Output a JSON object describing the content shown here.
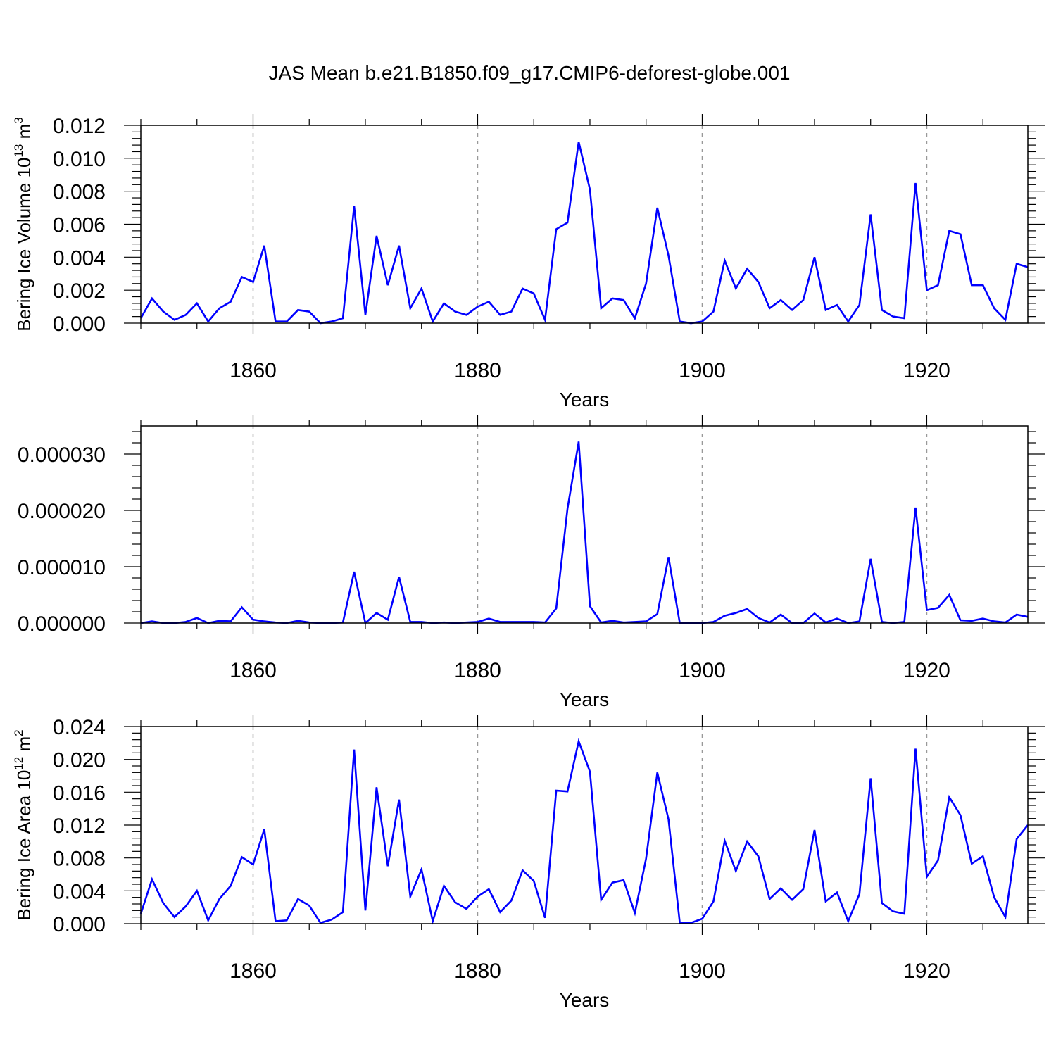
{
  "figure_title": "JAS Mean b.e21.B1850.f09_g17.CMIP6-deforest-globe.001",
  "colors": {
    "line": "#0000ff",
    "axis": "#000000",
    "grid": "#999999"
  },
  "chart_data": [
    {
      "type": "line",
      "title": "JAS Mean b.e21.B1850.f09_g17.CMIP6-deforest-globe.001",
      "xlabel": "Years",
      "ylabel": {
        "text": "Bering Ice Volume 10",
        "exponent": "13",
        "unit": " m",
        "unit_exponent": "3"
      },
      "xlim": [
        1850,
        1929
      ],
      "ylim": [
        0,
        0.012
      ],
      "x_ticks": [
        1860,
        1880,
        1900,
        1920
      ],
      "y_ticks": [
        "0.000",
        "0.002",
        "0.004",
        "0.006",
        "0.008",
        "0.010",
        "0.012"
      ],
      "grid": "vertical dashed at major x ticks",
      "legend": "none",
      "x_start": 1850,
      "series": [
        {
          "values": [
            0.0003,
            0.0015,
            0.0007,
            0.0002,
            0.0005,
            0.0012,
            0.0001,
            0.0009,
            0.0013,
            0.0028,
            0.0025,
            0.0047,
            0.0001,
            0.0001,
            0.0008,
            0.0007,
            0.0,
            0.0001,
            0.0003,
            0.0071,
            0.0005,
            0.0053,
            0.0023,
            0.0047,
            0.0009,
            0.0021,
            0.0001,
            0.0012,
            0.0007,
            0.0005,
            0.001,
            0.0013,
            0.0005,
            0.0007,
            0.0021,
            0.0018,
            0.0002,
            0.0057,
            0.0061,
            0.011,
            0.0081,
            0.0009,
            0.0015,
            0.0014,
            0.0003,
            0.0024,
            0.007,
            0.0041,
            0.0001,
            0.0,
            0.0001,
            0.0007,
            0.0038,
            0.0021,
            0.0033,
            0.0025,
            0.0009,
            0.0014,
            0.0008,
            0.0014,
            0.004,
            0.0008,
            0.0011,
            0.0001,
            0.0011,
            0.0066,
            0.0008,
            0.0004,
            0.0003,
            0.0085,
            0.002,
            0.0023,
            0.0056,
            0.0054,
            0.0023,
            0.0023,
            0.0009,
            0.0002,
            0.0036,
            0.0034
          ]
        }
      ]
    },
    {
      "type": "line",
      "title": "",
      "xlabel": "Years",
      "ylabel": null,
      "xlim": [
        1850,
        1929
      ],
      "ylim": [
        0,
        3.5e-05
      ],
      "x_ticks": [
        1860,
        1880,
        1900,
        1920
      ],
      "y_ticks": [
        "0.000000",
        "0.000010",
        "0.000020",
        "0.000030"
      ],
      "grid": "vertical dashed at major x ticks",
      "legend": "none",
      "x_start": 1850,
      "series": [
        {
          "values": [
            0.0,
            3e-07,
            0.0,
            0.0,
            2e-07,
            9e-07,
            0.0,
            4e-07,
            3e-07,
            2.8e-06,
            6e-07,
            3e-07,
            1e-07,
            0.0,
            4e-07,
            1e-07,
            0.0,
            0.0,
            1e-07,
            9.1e-06,
            0.0,
            1.8e-06,
            6e-07,
            8.2e-06,
            2e-07,
            2e-07,
            0.0,
            1e-07,
            0.0,
            1e-07,
            2e-07,
            8e-07,
            2e-07,
            2e-07,
            2e-07,
            2e-07,
            1e-07,
            2.6e-06,
            2.03e-05,
            3.22e-05,
            3e-06,
            1e-07,
            4e-07,
            1e-07,
            2e-07,
            3e-07,
            1.6e-06,
            1.17e-05,
            0.0,
            0.0,
            0.0,
            2e-07,
            1.3e-06,
            1.8e-06,
            2.5e-06,
            9e-07,
            1e-07,
            1.5e-06,
            0.0,
            0.0,
            1.7e-06,
            1e-07,
            8e-07,
            0.0,
            3e-07,
            1.14e-05,
            2e-07,
            0.0,
            2e-07,
            2.05e-05,
            2.3e-06,
            2.7e-06,
            5e-06,
            5e-07,
            4e-07,
            8e-07,
            3e-07,
            1e-07,
            1.5e-06,
            1.1e-06
          ]
        }
      ]
    },
    {
      "type": "line",
      "title": "",
      "xlabel": "Years",
      "ylabel": {
        "text": "Bering Ice Area 10",
        "exponent": "12",
        "unit": " m",
        "unit_exponent": "2"
      },
      "xlim": [
        1850,
        1929
      ],
      "ylim": [
        0,
        0.024
      ],
      "x_ticks": [
        1860,
        1880,
        1900,
        1920
      ],
      "y_ticks": [
        "0.000",
        "0.004",
        "0.008",
        "0.012",
        "0.016",
        "0.020",
        "0.024"
      ],
      "grid": "vertical dashed at major x ticks",
      "legend": "none",
      "x_start": 1850,
      "series": [
        {
          "values": [
            0.0012,
            0.0054,
            0.0025,
            0.0008,
            0.0021,
            0.004,
            0.0004,
            0.003,
            0.0046,
            0.0081,
            0.0072,
            0.0115,
            0.0003,
            0.0004,
            0.003,
            0.0022,
            0.0001,
            0.0005,
            0.0014,
            0.0212,
            0.0016,
            0.0166,
            0.007,
            0.0151,
            0.0033,
            0.0066,
            0.0003,
            0.0046,
            0.0026,
            0.0018,
            0.0033,
            0.0042,
            0.0014,
            0.0028,
            0.0065,
            0.0052,
            0.0007,
            0.0162,
            0.0161,
            0.0222,
            0.0185,
            0.0029,
            0.005,
            0.0053,
            0.0013,
            0.0079,
            0.0184,
            0.0127,
            0.0001,
            0.0001,
            0.0006,
            0.0027,
            0.0101,
            0.0064,
            0.01,
            0.0082,
            0.003,
            0.0043,
            0.0029,
            0.0042,
            0.0114,
            0.0027,
            0.0038,
            0.0003,
            0.0036,
            0.0177,
            0.0025,
            0.0015,
            0.0012,
            0.0213,
            0.0057,
            0.0077,
            0.0154,
            0.0132,
            0.0073,
            0.0082,
            0.0032,
            0.0008,
            0.0103,
            0.012
          ]
        }
      ]
    }
  ]
}
